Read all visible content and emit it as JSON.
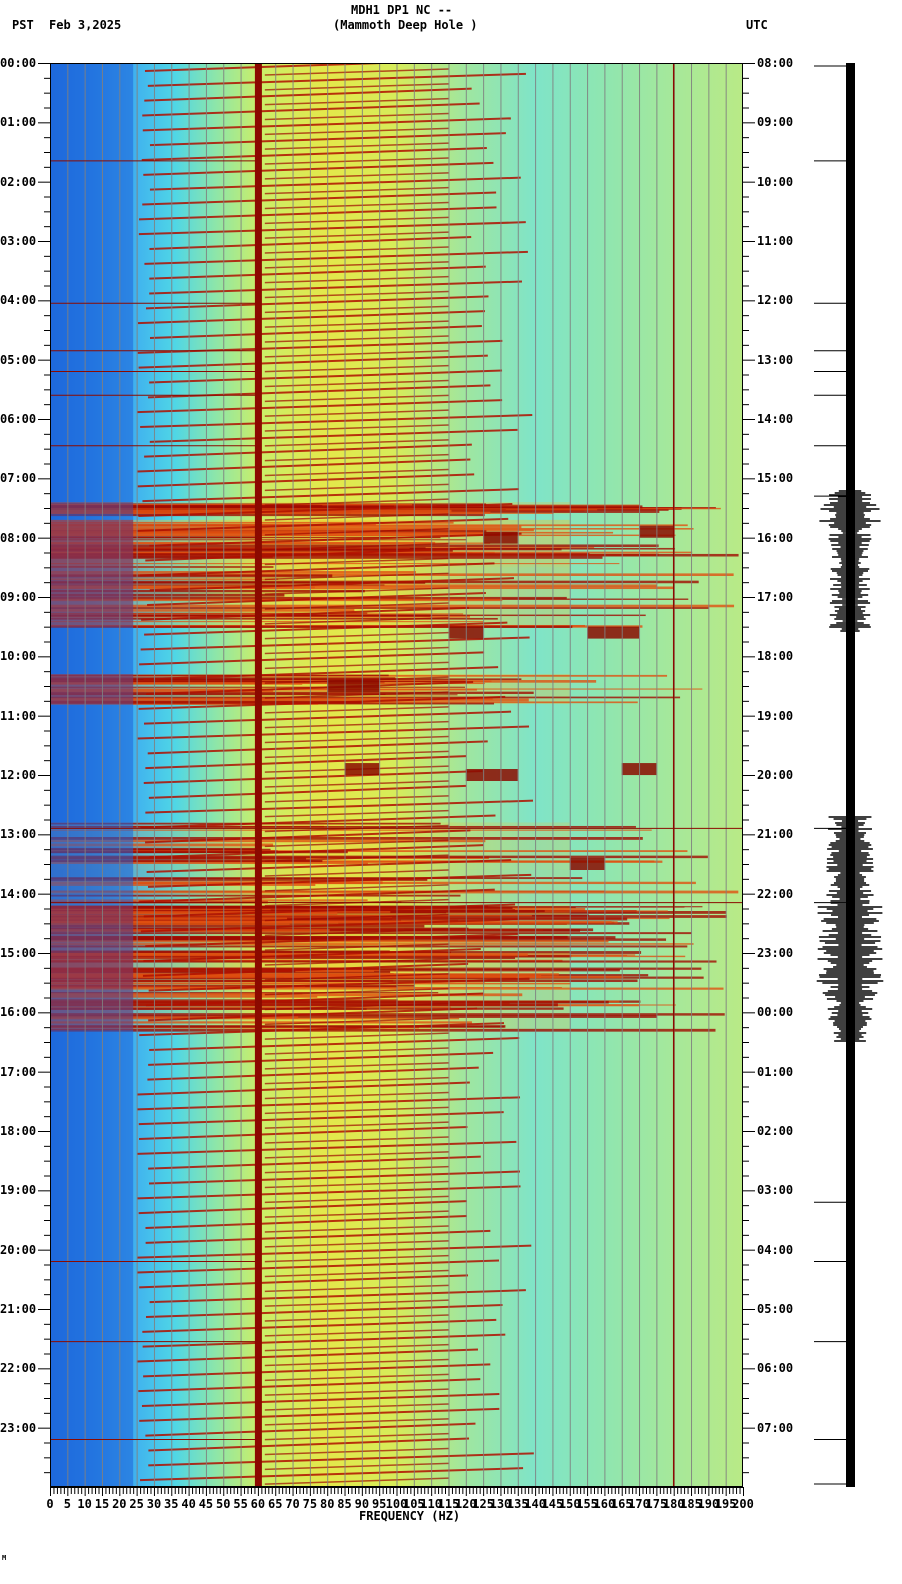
{
  "header": {
    "station_line": "MDH1 DP1 NC --",
    "location_line": "(Mammoth Deep Hole )",
    "left_timezone": "PST",
    "date": "Feb 3,2025",
    "right_timezone": "UTC"
  },
  "footer": {
    "mark": "M"
  },
  "chart_data": {
    "type": "heatmap",
    "title": "MDH1 DP1 NC -- (Mammoth Deep Hole ) spectrogram, Feb 3,2025",
    "xlabel": "FREQUENCY (HZ)",
    "ylabel_left": "PST",
    "ylabel_right": "UTC",
    "xlim": [
      0,
      200
    ],
    "x_ticks": [
      0,
      5,
      10,
      15,
      20,
      25,
      30,
      35,
      40,
      45,
      50,
      55,
      60,
      65,
      70,
      75,
      80,
      85,
      90,
      95,
      100,
      105,
      110,
      115,
      120,
      125,
      130,
      135,
      140,
      145,
      150,
      155,
      160,
      165,
      170,
      175,
      180,
      185,
      190,
      195,
      200
    ],
    "x_tick_labels": [
      "0",
      "5",
      "10",
      "15",
      "20",
      "25",
      "30",
      "35",
      "40",
      "45",
      "50",
      "55",
      "60",
      "65",
      "70",
      "75",
      "80",
      "85",
      "90",
      "95",
      "100",
      "105",
      "110",
      "115",
      "120",
      "125",
      "130",
      "135",
      "140",
      "145",
      "150",
      "155",
      "160",
      "165",
      "170",
      "175",
      "180",
      "185",
      "190",
      "195",
      "200"
    ],
    "y_ticks_left": [
      "00:00",
      "01:00",
      "02:00",
      "03:00",
      "04:00",
      "05:00",
      "06:00",
      "07:00",
      "08:00",
      "09:00",
      "10:00",
      "11:00",
      "12:00",
      "13:00",
      "14:00",
      "15:00",
      "16:00",
      "17:00",
      "18:00",
      "19:00",
      "20:00",
      "21:00",
      "22:00",
      "23:00"
    ],
    "y_ticks_right": [
      "08:00",
      "09:00",
      "10:00",
      "11:00",
      "12:00",
      "13:00",
      "14:00",
      "15:00",
      "16:00",
      "17:00",
      "18:00",
      "19:00",
      "20:00",
      "21:00",
      "22:00",
      "23:00",
      "00:00",
      "01:00",
      "02:00",
      "03:00",
      "04:00",
      "05:00",
      "06:00",
      "07:00"
    ],
    "minor_ticks_per_hour": 4,
    "grid": true,
    "colormap": [
      "#1f5fd8",
      "#3fb0ef",
      "#4fe0e0",
      "#c9ee6a",
      "#f0e830",
      "#f08a20",
      "#d02010",
      "#8b0a00"
    ],
    "features": {
      "persistent_line_hz": 60,
      "secondary_line_hz": 180,
      "harmonic_sweep_start_hz": 25,
      "high_activity_pst": [
        "07:30-10:45",
        "12:45-16:00"
      ],
      "low_noise_band_hz": [
        0,
        25
      ]
    },
    "waveform_panel": {
      "trace": "seismogram amplitude, 24 h",
      "high_amplitude_pst": [
        "07:15-09:30",
        "12:45-16:30"
      ]
    }
  }
}
